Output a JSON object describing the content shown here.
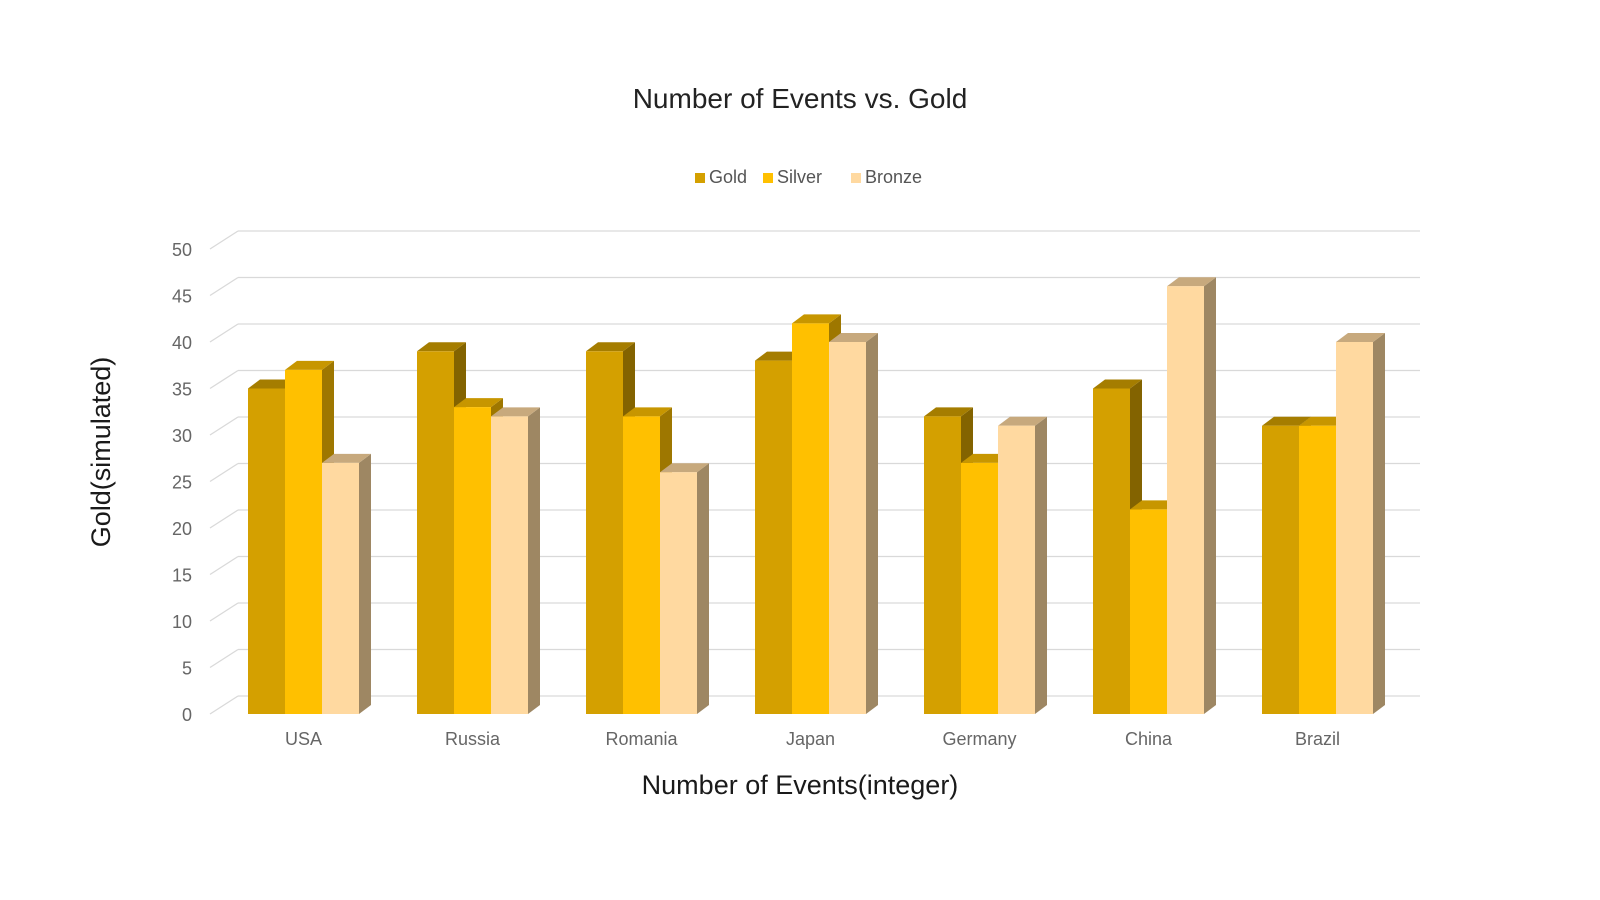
{
  "chart_data": {
    "type": "bar",
    "title": "Number of Events vs. Gold",
    "xlabel": "Number of Events(integer)",
    "ylabel": "Gold(simulated)",
    "categories": [
      "USA",
      "Russia",
      "Romania",
      "Japan",
      "Germany",
      "China",
      "Brazil"
    ],
    "series": [
      {
        "name": "Gold",
        "color": "#d4a000",
        "values": [
          35,
          39,
          39,
          38,
          32,
          35,
          31
        ]
      },
      {
        "name": "Silver",
        "color": "#ffc000",
        "values": [
          37,
          33,
          32,
          42,
          27,
          22,
          31
        ]
      },
      {
        "name": "Bronze",
        "color": "#ffd9a0",
        "values": [
          27,
          32,
          26,
          40,
          31,
          46,
          40
        ]
      }
    ],
    "ylim": [
      0,
      50
    ],
    "yticks": [
      "0",
      "5",
      "10",
      "15",
      "20",
      "25",
      "30",
      "35",
      "40",
      "45",
      "50"
    ],
    "grid": true,
    "legend": "top-center",
    "style": "3d-clustered-column"
  }
}
